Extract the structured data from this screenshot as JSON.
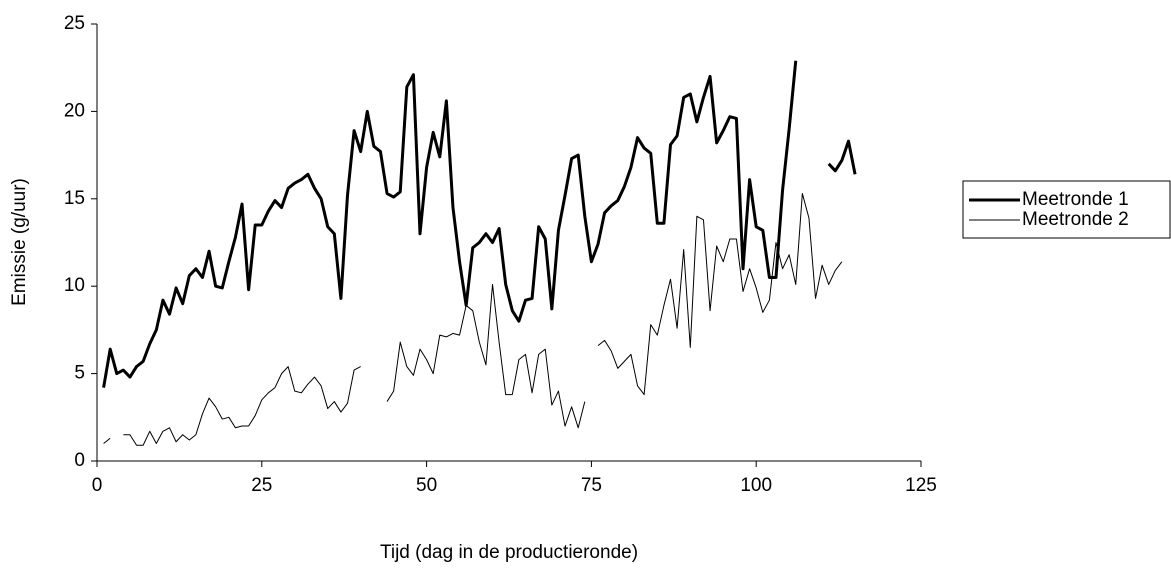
{
  "chart_data": {
    "type": "line",
    "x_label": "Tijd (dag in de productieronde)",
    "y_label": "Emissie (g/uur)",
    "x": [
      1,
      2,
      3,
      4,
      5,
      6,
      7,
      8,
      9,
      10,
      11,
      12,
      13,
      14,
      15,
      16,
      17,
      18,
      19,
      20,
      21,
      22,
      23,
      24,
      25,
      26,
      27,
      28,
      29,
      30,
      31,
      32,
      33,
      34,
      35,
      36,
      37,
      38,
      39,
      40,
      41,
      42,
      43,
      44,
      45,
      46,
      47,
      48,
      49,
      50,
      51,
      52,
      53,
      54,
      55,
      56,
      57,
      58,
      59,
      60,
      61,
      62,
      63,
      64,
      65,
      66,
      67,
      68,
      69,
      70,
      71,
      72,
      73,
      74,
      75,
      76,
      77,
      78,
      79,
      80,
      81,
      82,
      83,
      84,
      85,
      86,
      87,
      88,
      89,
      90,
      91,
      92,
      93,
      94,
      95,
      96,
      97,
      98,
      99,
      100,
      101,
      102,
      103,
      104,
      105,
      106,
      107,
      108,
      109,
      110,
      111,
      112,
      113,
      114,
      115
    ],
    "series": [
      {
        "name": "Meetronde 1",
        "color": "#000000",
        "values": [
          4.2,
          6.4,
          5.0,
          5.2,
          4.8,
          5.4,
          5.7,
          6.7,
          7.5,
          9.2,
          8.4,
          9.9,
          9.0,
          10.6,
          11.0,
          10.5,
          12.0,
          10.0,
          9.9,
          11.4,
          12.8,
          14.7,
          9.8,
          13.5,
          13.5,
          14.3,
          14.9,
          14.5,
          15.6,
          15.9,
          16.1,
          16.4,
          15.6,
          15.0,
          13.4,
          13.0,
          9.3,
          15.2,
          18.9,
          17.7,
          20.0,
          18.0,
          17.7,
          15.3,
          15.1,
          15.4,
          21.4,
          22.1,
          13.0,
          16.8,
          18.8,
          17.4,
          20.6,
          14.5,
          11.4,
          8.9,
          12.2,
          12.5,
          13.0,
          12.5,
          13.3,
          10.1,
          8.6,
          8.0,
          9.2,
          9.3,
          13.4,
          12.7,
          8.7,
          13.2,
          15.2,
          17.3,
          17.5,
          14.0,
          11.4,
          12.4,
          14.2,
          14.6,
          14.9,
          15.7,
          16.8,
          18.5,
          17.9,
          17.6,
          13.6,
          13.6,
          18.1,
          18.6,
          20.8,
          21.0,
          19.4,
          20.8,
          22.0,
          18.2,
          18.9,
          19.7,
          19.6,
          11.0,
          16.1,
          13.4,
          13.2,
          10.5,
          10.5,
          15.5,
          19.0,
          22.9,
          null,
          null,
          null,
          null,
          17.0,
          16.6,
          17.2,
          18.3,
          16.4
        ]
      },
      {
        "name": "Meetronde 2",
        "color": "#000000",
        "values": [
          1.0,
          1.3,
          null,
          1.5,
          1.5,
          0.9,
          0.9,
          1.7,
          1.0,
          1.7,
          1.9,
          1.1,
          1.5,
          1.2,
          1.5,
          2.7,
          3.6,
          3.1,
          2.4,
          2.5,
          1.9,
          2.0,
          2.0,
          2.6,
          3.5,
          3.9,
          4.2,
          5.0,
          5.4,
          4.0,
          3.9,
          4.4,
          4.8,
          4.3,
          3.0,
          3.4,
          2.8,
          3.3,
          5.2,
          5.4,
          null,
          null,
          null,
          3.4,
          4.0,
          6.8,
          5.4,
          4.9,
          6.4,
          5.8,
          5.0,
          7.2,
          7.1,
          7.3,
          7.2,
          8.9,
          8.6,
          6.8,
          5.5,
          10.1,
          6.8,
          3.8,
          3.8,
          5.8,
          6.1,
          3.9,
          6.1,
          6.4,
          3.2,
          4.0,
          2.0,
          3.1,
          1.9,
          3.4,
          null,
          6.6,
          6.9,
          6.3,
          5.3,
          5.7,
          6.1,
          4.3,
          3.8,
          7.8,
          7.2,
          8.9,
          10.4,
          7.6,
          12.1,
          6.5,
          14.0,
          13.8,
          8.6,
          12.3,
          11.4,
          12.7,
          12.7,
          9.7,
          11.0,
          9.9,
          8.5,
          9.2,
          12.5,
          11.0,
          11.8,
          10.1,
          15.3,
          13.9,
          9.3,
          11.2,
          10.1,
          10.9,
          11.4,
          null,
          null
        ]
      }
    ],
    "xlim": [
      0,
      125
    ],
    "xticks": [
      0,
      25,
      50,
      75,
      100,
      125
    ],
    "ylim": [
      0,
      25
    ],
    "yticks": [
      0,
      5,
      10,
      15,
      20,
      25
    ],
    "grid": false,
    "legend": "right"
  }
}
